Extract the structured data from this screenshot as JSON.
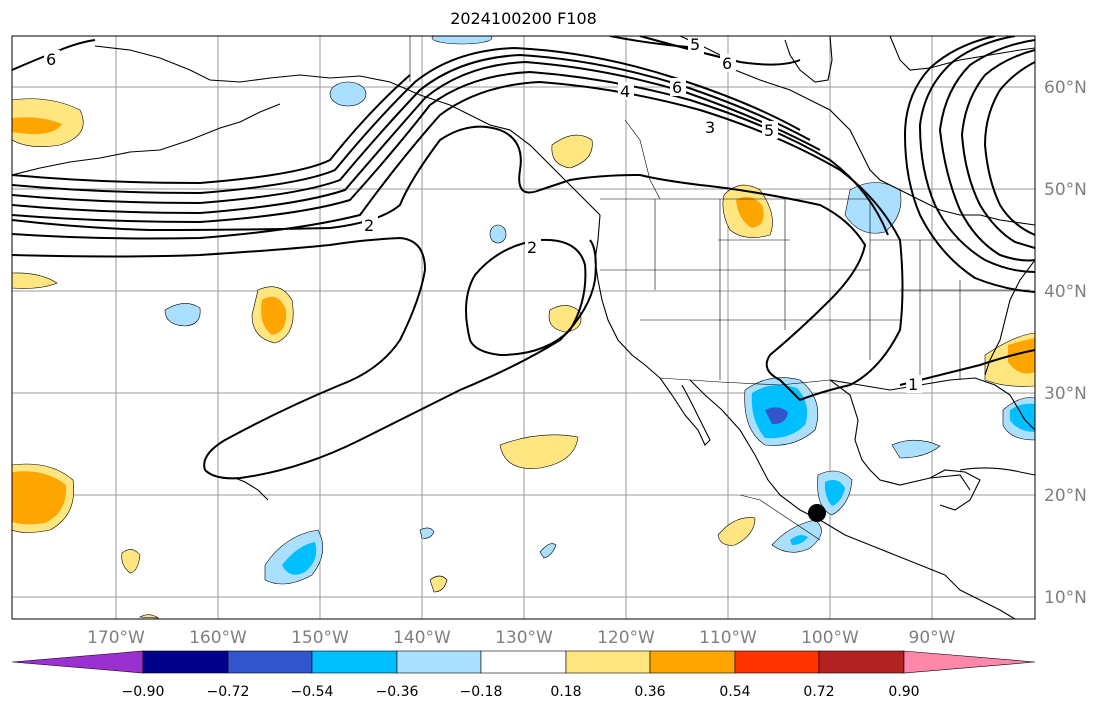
{
  "title": "2024100200 F108",
  "lat_labels": [
    "60°N",
    "50°N",
    "40°N",
    "30°N",
    "20°N",
    "10°N"
  ],
  "lon_labels": [
    "170°W",
    "160°W",
    "150°W",
    "140°W",
    "130°W",
    "120°W",
    "110°W",
    "100°W",
    "90°W"
  ],
  "colorbar": {
    "ticks": [
      "−0.90",
      "−0.72",
      "−0.54",
      "−0.36",
      "−0.18",
      "0.18",
      "0.36",
      "0.54",
      "0.72",
      "0.90"
    ],
    "colors": [
      "#9b30d0",
      "#000088",
      "#3355cc",
      "#00bfff",
      "#aadfff",
      "#ffffff",
      "#ffe680",
      "#ffa500",
      "#ff3300",
      "#b22222",
      "#ff88aa"
    ]
  },
  "contour_labels": [
    "6",
    "5",
    "6",
    "4",
    "6",
    "3",
    "5",
    "2",
    "2",
    "1"
  ],
  "fill_colors": {
    "light_yellow": "#ffe680",
    "orange": "#ffa500",
    "light_blue": "#aadfff",
    "blue": "#00bfff",
    "dark_blue": "#3355cc"
  }
}
